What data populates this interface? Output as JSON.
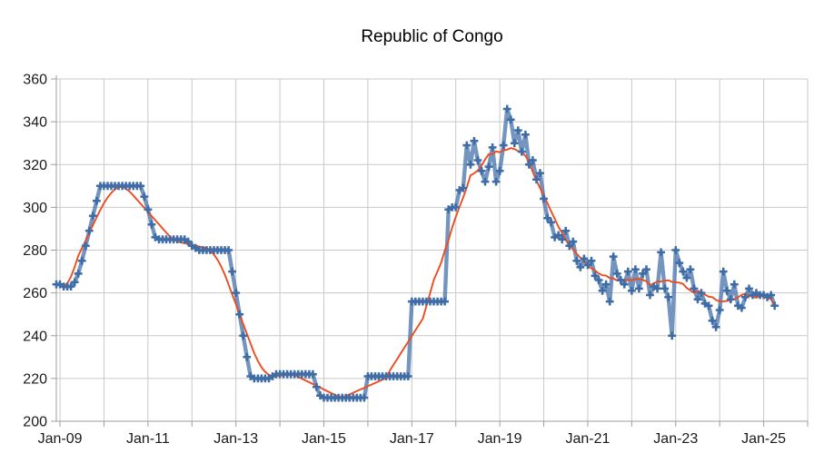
{
  "colors": {
    "background": "#ffffff",
    "grid": "#c9c9c9",
    "axis": "#9e9e9e",
    "text": "#1a1a1a",
    "series_blue": "#3e6ca6",
    "trend_red": "#ee4b1f"
  },
  "chart_data": {
    "type": "line",
    "title": "Republic of Congo",
    "xlabel": "",
    "ylabel": "",
    "grid": true,
    "legend": false,
    "x_axis": {
      "frequency": "monthly",
      "start_label": "Dec-2008",
      "end_label": "Apr-2025",
      "axis_span_months": 205,
      "first_gridline_year": 2009,
      "gridline_count": 18,
      "tick_labels": [
        "Jan-09",
        "Jan-11",
        "Jan-13",
        "Jan-15",
        "Jan-17",
        "Jan-19",
        "Jan-21",
        "Jan-23",
        "Jan-25"
      ]
    },
    "y_axis": {
      "min": 200,
      "max": 360,
      "ticks": [
        200,
        220,
        240,
        260,
        280,
        300,
        320,
        340,
        360
      ]
    },
    "series": [
      {
        "name": "monthly-values",
        "marker": "plus",
        "color": "#3e6ca6",
        "line_opacity": 0.72,
        "values": [
          264,
          264,
          263,
          263,
          263,
          265,
          269,
          275,
          282,
          289,
          296,
          303,
          310,
          310,
          310,
          310,
          310,
          310,
          310,
          310,
          310,
          310,
          310,
          310,
          305,
          299,
          292,
          286,
          285,
          285,
          285,
          285,
          285,
          285,
          285,
          285,
          284,
          282,
          281,
          280,
          280,
          280,
          280,
          280,
          280,
          280,
          280,
          280,
          270,
          260,
          250,
          240,
          230,
          221,
          220,
          220,
          220,
          220,
          220,
          221,
          222,
          222,
          222,
          222,
          222,
          222,
          222,
          222,
          222,
          222,
          222,
          216,
          212,
          211,
          211,
          211,
          211,
          211,
          211,
          211,
          211,
          211,
          211,
          211,
          211,
          221,
          221,
          221,
          221,
          221,
          221,
          221,
          221,
          221,
          221,
          221,
          221,
          256,
          256,
          256,
          256,
          256,
          256,
          256,
          256,
          256,
          256,
          299,
          300,
          300,
          308,
          309,
          329,
          320,
          331,
          322,
          317,
          312,
          319,
          328,
          312,
          317,
          329,
          346,
          341,
          330,
          336,
          326,
          334,
          320,
          322,
          313,
          316,
          304,
          295,
          293,
          286,
          287,
          285,
          289,
          282,
          284,
          275,
          272,
          276,
          273,
          275,
          268,
          266,
          261,
          264,
          256,
          277,
          269,
          266,
          264,
          270,
          261,
          271,
          262,
          269,
          271,
          259,
          263,
          262,
          279,
          262,
          258,
          240,
          280,
          274,
          270,
          267,
          271,
          262,
          257,
          260,
          255,
          254,
          247,
          244,
          252,
          270,
          261,
          257,
          264,
          254,
          253,
          258,
          262,
          259,
          260,
          259,
          259,
          258,
          259,
          254
        ]
      },
      {
        "name": "trend",
        "marker": "none",
        "color": "#ee4b1f",
        "derived": "centered_moving_average",
        "window": 13
      }
    ]
  }
}
